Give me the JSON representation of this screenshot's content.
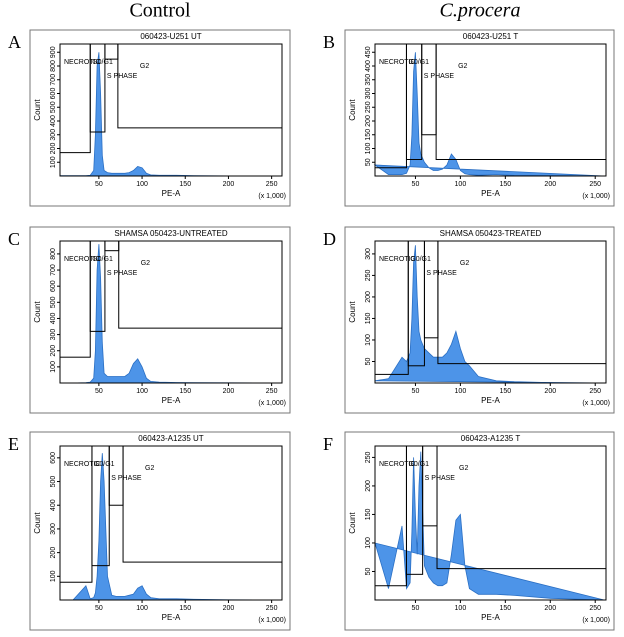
{
  "columns": [
    "Control",
    "C.procera"
  ],
  "chart_data": [
    {
      "type": "area",
      "panel": "A",
      "title": "060423-U251 UT",
      "xlabel": "PE-A",
      "ylabel": "Count",
      "x_note": "(x 1,000)",
      "xlim": [
        5,
        262
      ],
      "xticks": [
        50,
        100,
        150,
        200,
        250
      ],
      "ylim": [
        0,
        960
      ],
      "yticks": [
        100,
        200,
        300,
        400,
        500,
        600,
        700,
        800,
        900
      ],
      "color": "#4d94e8",
      "x": [
        5,
        20,
        35,
        40,
        44,
        46,
        48,
        50,
        52,
        54,
        56,
        60,
        65,
        70,
        75,
        80,
        85,
        90,
        95,
        100,
        105,
        110,
        120,
        140,
        160,
        200,
        260
      ],
      "values": [
        2,
        2,
        3,
        5,
        40,
        300,
        800,
        900,
        600,
        150,
        40,
        25,
        20,
        20,
        20,
        20,
        25,
        40,
        70,
        60,
        20,
        8,
        5,
        5,
        2,
        1,
        0
      ],
      "gates": [
        {
          "name": "NECROTIC",
          "x0": 5,
          "x1": 40,
          "y0": 170
        },
        {
          "name": "G0/G1",
          "x0": 40,
          "x1": 57,
          "y0": 320
        },
        {
          "name": "S PHASE",
          "x0": 57,
          "x1": 72,
          "y0": 850
        },
        {
          "name": "G2",
          "x0": 72,
          "x1": 262,
          "y0": 350
        }
      ]
    },
    {
      "type": "area",
      "panel": "B",
      "title": "060423-U251 T",
      "xlabel": "PE-A",
      "ylabel": "Count",
      "x_note": "(x 1,000)",
      "xlim": [
        5,
        262
      ],
      "xticks": [
        50,
        100,
        150,
        200,
        250
      ],
      "ylim": [
        0,
        480
      ],
      "yticks": [
        50,
        100,
        150,
        200,
        250,
        300,
        350,
        400,
        450
      ],
      "color": "#4d94e8",
      "x": [
        5,
        20,
        35,
        40,
        44,
        46,
        48,
        50,
        52,
        54,
        56,
        60,
        65,
        70,
        75,
        80,
        85,
        90,
        95,
        100,
        105,
        110,
        120,
        140,
        160,
        200,
        260
      ],
      "values": [
        40,
        5,
        5,
        10,
        40,
        150,
        380,
        450,
        300,
        120,
        80,
        50,
        30,
        20,
        20,
        25,
        40,
        80,
        60,
        20,
        8,
        5,
        3,
        5,
        2,
        1,
        0
      ],
      "gates": [
        {
          "name": "NECROTIC",
          "x0": 5,
          "x1": 40,
          "y0": 30
        },
        {
          "name": "G0/G1",
          "x0": 40,
          "x1": 57,
          "y0": 60
        },
        {
          "name": "S PHASE",
          "x0": 57,
          "x1": 73,
          "y0": 150
        },
        {
          "name": "G2",
          "x0": 73,
          "x1": 262,
          "y0": 60
        }
      ]
    },
    {
      "type": "area",
      "panel": "C",
      "title": "SHAMSA 050423-UNTREATED",
      "xlabel": "PE-A",
      "ylabel": "Count",
      "x_note": "(x 1,000)",
      "xlim": [
        5,
        262
      ],
      "xticks": [
        50,
        100,
        150,
        200,
        250
      ],
      "ylim": [
        0,
        880
      ],
      "yticks": [
        100,
        200,
        300,
        400,
        500,
        600,
        700,
        800
      ],
      "color": "#4d94e8",
      "x": [
        5,
        20,
        35,
        40,
        44,
        46,
        48,
        50,
        52,
        54,
        56,
        60,
        65,
        70,
        75,
        80,
        85,
        90,
        95,
        100,
        105,
        110,
        120,
        140,
        160,
        200,
        260
      ],
      "values": [
        0,
        0,
        2,
        5,
        30,
        200,
        700,
        860,
        650,
        250,
        60,
        40,
        40,
        40,
        40,
        40,
        60,
        120,
        150,
        100,
        30,
        10,
        5,
        3,
        2,
        1,
        0
      ],
      "gates": [
        {
          "name": "NECROTIC",
          "x0": 5,
          "x1": 40,
          "y0": 160
        },
        {
          "name": "G0/G1",
          "x0": 40,
          "x1": 57,
          "y0": 320
        },
        {
          "name": "S PHASE",
          "x0": 57,
          "x1": 73,
          "y0": 820
        },
        {
          "name": "G2",
          "x0": 73,
          "x1": 262,
          "y0": 340
        }
      ]
    },
    {
      "type": "area",
      "panel": "D",
      "title": "SHAMSA 050423-TREATED",
      "xlabel": "PE-A",
      "ylabel": "Count",
      "x_note": "(x 1,000)",
      "xlim": [
        5,
        262
      ],
      "xticks": [
        50,
        100,
        150,
        200,
        250
      ],
      "ylim": [
        0,
        330
      ],
      "yticks": [
        50,
        100,
        150,
        200,
        250,
        300
      ],
      "color": "#4d94e8",
      "x": [
        5,
        20,
        35,
        40,
        44,
        46,
        48,
        50,
        52,
        54,
        56,
        60,
        65,
        70,
        75,
        80,
        85,
        90,
        95,
        100,
        105,
        110,
        120,
        140,
        160,
        200,
        260
      ],
      "values": [
        5,
        10,
        60,
        50,
        70,
        150,
        280,
        320,
        200,
        120,
        100,
        80,
        70,
        60,
        60,
        60,
        70,
        90,
        120,
        80,
        50,
        40,
        15,
        5,
        3,
        1,
        0
      ],
      "gates": [
        {
          "name": "NECROTIC",
          "x0": 5,
          "x1": 42,
          "y0": 20
        },
        {
          "name": "G0/G1",
          "x0": 42,
          "x1": 60,
          "y0": 40
        },
        {
          "name": "S PHASE",
          "x0": 60,
          "x1": 75,
          "y0": 105
        },
        {
          "name": "G2",
          "x0": 75,
          "x1": 262,
          "y0": 45
        }
      ]
    },
    {
      "type": "area",
      "panel": "E",
      "title": "060423-A1235 UT",
      "xlabel": "PE-A",
      "ylabel": "Count",
      "x_note": "(x 1,000)",
      "xlim": [
        5,
        262
      ],
      "xticks": [
        50,
        100,
        150,
        200,
        250
      ],
      "ylim": [
        0,
        650
      ],
      "yticks": [
        100,
        200,
        300,
        400,
        500,
        600
      ],
      "color": "#4d94e8",
      "x": [
        5,
        20,
        35,
        40,
        44,
        46,
        48,
        50,
        52,
        54,
        56,
        60,
        65,
        70,
        75,
        80,
        85,
        90,
        95,
        100,
        105,
        110,
        120,
        140,
        160,
        200,
        260
      ],
      "values": [
        0,
        0,
        60,
        5,
        10,
        30,
        100,
        250,
        500,
        620,
        500,
        100,
        20,
        15,
        15,
        15,
        20,
        25,
        50,
        60,
        25,
        10,
        5,
        5,
        3,
        1,
        0
      ],
      "gates": [
        {
          "name": "NECROTIC",
          "x0": 5,
          "x1": 42,
          "y0": 75
        },
        {
          "name": "G0/G1",
          "x0": 42,
          "x1": 62,
          "y0": 145
        },
        {
          "name": "S PHASE",
          "x0": 62,
          "x1": 78,
          "y0": 400
        },
        {
          "name": "G2",
          "x0": 78,
          "x1": 262,
          "y0": 160
        }
      ]
    },
    {
      "type": "area",
      "panel": "F",
      "title": "060423-A1235 T",
      "xlabel": "PE-A",
      "ylabel": "Count",
      "x_note": "(x 1,000)",
      "xlim": [
        5,
        262
      ],
      "xticks": [
        50,
        100,
        150,
        200,
        250
      ],
      "ylim": [
        0,
        270
      ],
      "yticks": [
        50,
        100,
        150,
        200,
        250
      ],
      "color": "#4d94e8",
      "x": [
        5,
        20,
        35,
        40,
        44,
        46,
        48,
        50,
        52,
        54,
        56,
        60,
        65,
        70,
        75,
        80,
        85,
        90,
        95,
        100,
        105,
        110,
        120,
        140,
        160,
        200,
        260
      ],
      "values": [
        100,
        20,
        130,
        20,
        30,
        120,
        250,
        150,
        80,
        200,
        260,
        60,
        40,
        30,
        25,
        25,
        30,
        80,
        140,
        150,
        60,
        20,
        10,
        10,
        8,
        3,
        0
      ],
      "gates": [
        {
          "name": "NECROTIC",
          "x0": 5,
          "x1": 40,
          "y0": 25
        },
        {
          "name": "G0/G1",
          "x0": 40,
          "x1": 58,
          "y0": 45
        },
        {
          "name": "S PHASE",
          "x0": 58,
          "x1": 74,
          "y0": 130
        },
        {
          "name": "G2",
          "x0": 74,
          "x1": 262,
          "y0": 55
        }
      ]
    }
  ]
}
